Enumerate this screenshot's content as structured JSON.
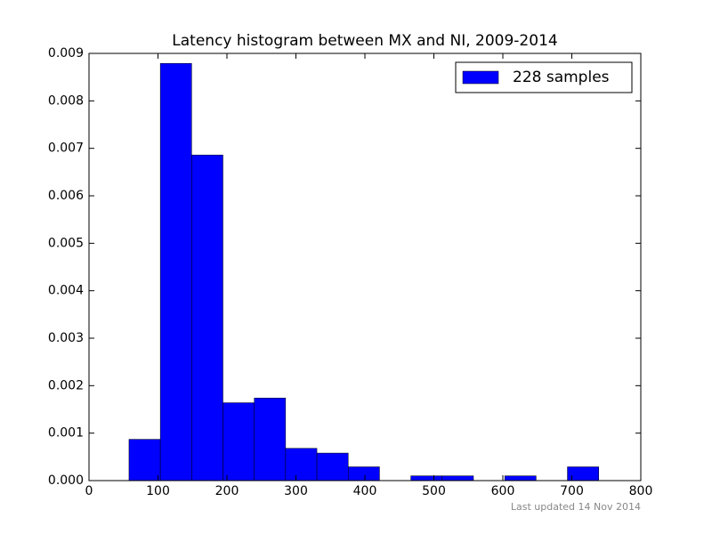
{
  "chart_data": {
    "type": "histogram",
    "title": "Latency histogram between MX and NI, 2009-2014",
    "bins": [
      58,
      103.4,
      148.8,
      194.2,
      239.6,
      285,
      330.4,
      375.8,
      421.2,
      466.6,
      512,
      557.4,
      602.8,
      648.2,
      693.6,
      739
    ],
    "series": [
      {
        "name": "228 samples",
        "color": "#0000ff",
        "values": [
          0.00087,
          0.00879,
          0.00686,
          0.00164,
          0.00174,
          0.00068,
          0.00058,
          0.00029,
          0,
          0.0001,
          0.0001,
          0,
          0.0001,
          0,
          0.00029
        ]
      }
    ],
    "xlim": [
      0,
      800
    ],
    "xticks": [
      0,
      100,
      200,
      300,
      400,
      500,
      600,
      700,
      800
    ],
    "ylim": [
      0,
      0.009
    ],
    "yticks": [
      {
        "value": 0,
        "label": "0.000"
      },
      {
        "value": 0.001,
        "label": "0.001"
      },
      {
        "value": 0.002,
        "label": "0.002"
      },
      {
        "value": 0.003,
        "label": "0.003"
      },
      {
        "value": 0.004,
        "label": "0.004"
      },
      {
        "value": 0.005,
        "label": "0.005"
      },
      {
        "value": 0.006,
        "label": "0.006"
      },
      {
        "value": 0.007,
        "label": "0.007"
      },
      {
        "value": 0.008,
        "label": "0.008"
      },
      {
        "value": 0.009,
        "label": "0.009"
      }
    ],
    "legend": "upper right",
    "footnote": "Last updated 14 Nov 2014"
  }
}
